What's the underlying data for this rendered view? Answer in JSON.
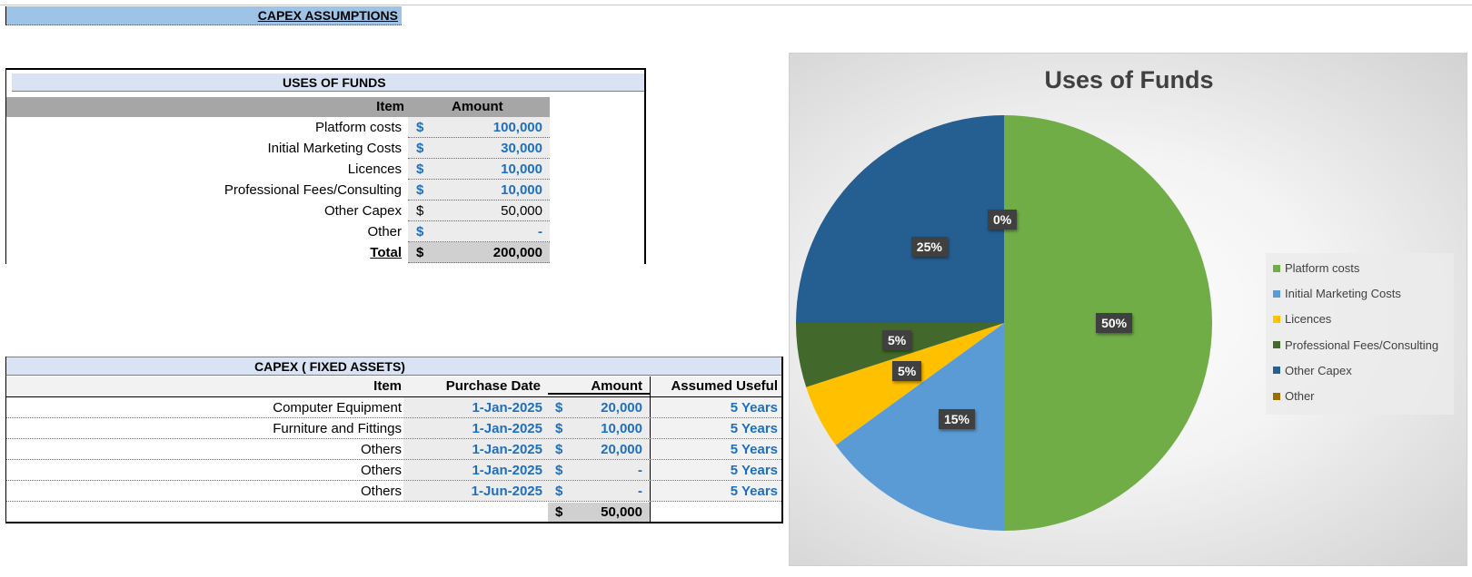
{
  "sheet": {
    "title": "CAPEX ASSUMPTIONS"
  },
  "uses_of_funds": {
    "title": "USES OF FUNDS",
    "col_item": "Item",
    "col_amount": "Amount",
    "currency": "$",
    "rows": [
      {
        "item": "Platform costs",
        "amount": "100,000",
        "input": true
      },
      {
        "item": "Initial Marketing Costs",
        "amount": "30,000",
        "input": true
      },
      {
        "item": "Licences",
        "amount": "10,000",
        "input": true
      },
      {
        "item": "Professional Fees/Consulting",
        "amount": "10,000",
        "input": true
      },
      {
        "item": "Other Capex",
        "amount": "50,000",
        "input": false
      },
      {
        "item": "Other",
        "amount": "-",
        "input": true
      }
    ],
    "total_label": "Total",
    "total_amount": "200,000"
  },
  "capex": {
    "title": "CAPEX ( FIXED ASSETS)",
    "col_item": "Item",
    "col_date": "Purchase Date",
    "col_amount": "Amount",
    "col_life": "Assumed Useful Life",
    "currency": "$",
    "rows": [
      {
        "item": "Computer Equipment",
        "date": "1-Jan-2025",
        "amount": "20,000",
        "life": "5  Years"
      },
      {
        "item": "Furniture and Fittings",
        "date": "1-Jan-2025",
        "amount": "10,000",
        "life": "5  Years"
      },
      {
        "item": "Others",
        "date": "1-Jan-2025",
        "amount": "20,000",
        "life": "5  Years"
      },
      {
        "item": "Others",
        "date": "1-Jan-2025",
        "amount": "-",
        "life": "5  Years"
      },
      {
        "item": "Others",
        "date": "1-Jun-2025",
        "amount": "-",
        "life": "5  Years"
      }
    ],
    "total_amount": "50,000"
  },
  "chart_data": {
    "type": "pie",
    "title": "Uses of Funds",
    "categories": [
      "Platform costs",
      "Initial Marketing Costs",
      "Licences",
      "Professional Fees/Consulting",
      "Other Capex",
      "Other"
    ],
    "values": [
      100000,
      30000,
      10000,
      10000,
      50000,
      0
    ],
    "labels": [
      "50%",
      "15%",
      "5%",
      "5%",
      "25%",
      "0%"
    ],
    "colors": [
      "#70ad47",
      "#5b9bd5",
      "#ffc000",
      "#43682b",
      "#255e91",
      "#9e6c00"
    ],
    "legend": "right"
  }
}
